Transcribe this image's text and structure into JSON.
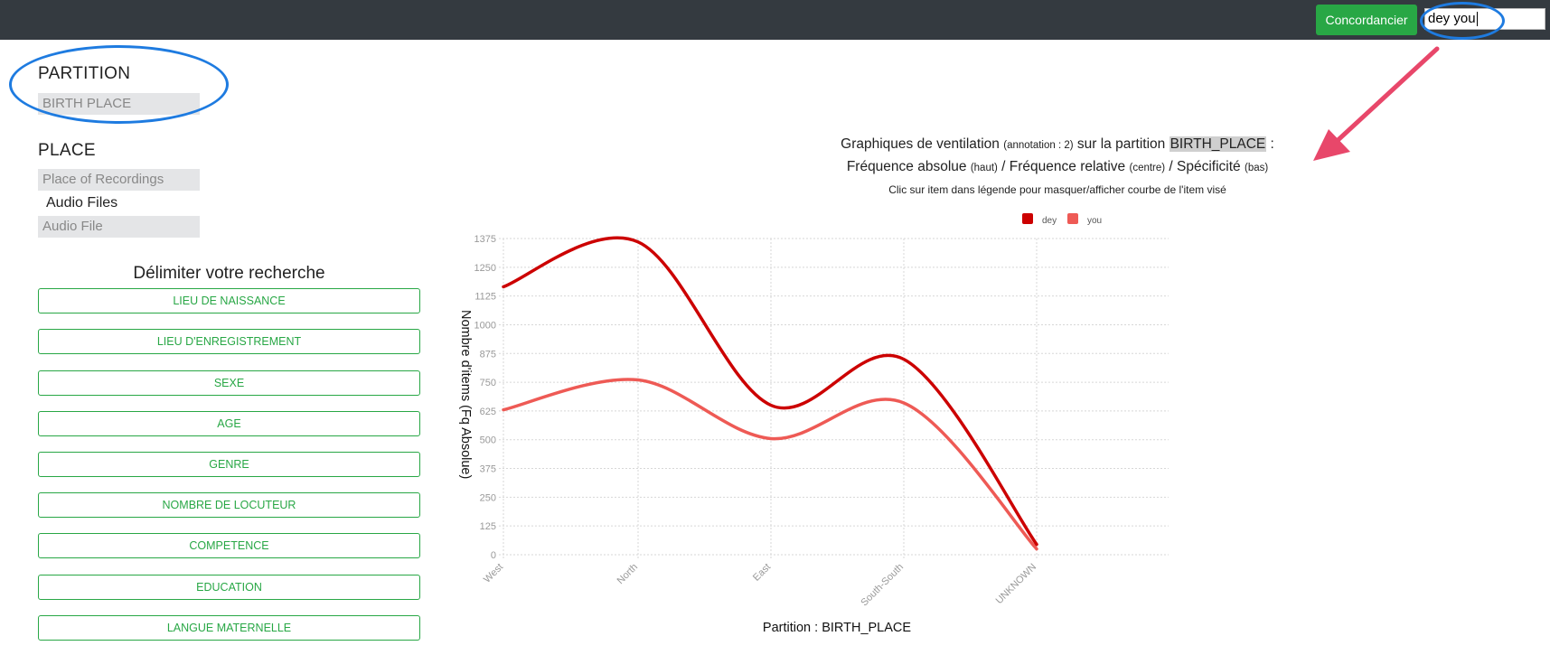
{
  "topbar": {
    "concordancier_label": "Concordancier",
    "search_value": "dey you"
  },
  "left": {
    "partition_title": "PARTITION",
    "partition_value": "BIRTH PLACE",
    "place_title": "PLACE",
    "place_of_recordings": "Place of Recordings",
    "audio_files_label": "Audio Files",
    "audio_file": "Audio File",
    "delimiter_title": "Délimiter votre recherche",
    "filters": [
      "LIEU DE NAISSANCE",
      "LIEU D'ENREGISTREMENT",
      "SEXE",
      "AGE",
      "GENRE",
      "NOMBRE DE LOCUTEUR",
      "COMPETENCE",
      "EDUCATION",
      "LANGUE MATERNELLE"
    ]
  },
  "chart_header": {
    "line1_a": "Graphiques de ventilation ",
    "line1_b": "(annotation : 2)",
    "line1_c": " sur la partition ",
    "line1_d": "BIRTH_PLACE",
    "line1_e": " :",
    "line2_a": "Fréquence absolue ",
    "line2_b": "(haut)",
    "line2_c": " / Fréquence relative ",
    "line2_d": "(centre)",
    "line2_e": " / Spécificité ",
    "line2_f": "(bas)",
    "line3": "Clic sur item dans légende pour masquer/afficher courbe de l'item visé"
  },
  "colors": {
    "topbar": "#343a40",
    "accent_green": "#28a745",
    "annotation_blue": "#1e7be0",
    "arrow_pink": "#e8476a",
    "dey": "#cc0000",
    "you": "#ee5a55"
  },
  "chart_data": {
    "type": "line",
    "categories": [
      "West",
      "North",
      "East",
      "South-South",
      "UNKNOWN"
    ],
    "series": [
      {
        "name": "dey",
        "values": [
          1165,
          1360,
          650,
          850,
          45
        ]
      },
      {
        "name": "you",
        "values": [
          630,
          760,
          505,
          660,
          25
        ]
      }
    ],
    "ylabel": "Nombre d'items (Fq Absolue)",
    "xlabel": "Partition : BIRTH_PLACE",
    "ylim": [
      0,
      1375
    ],
    "yticks": [
      0,
      125,
      250,
      375,
      500,
      625,
      750,
      875,
      1000,
      1125,
      1250,
      1375
    ],
    "grid": true,
    "legend_position": "top"
  }
}
